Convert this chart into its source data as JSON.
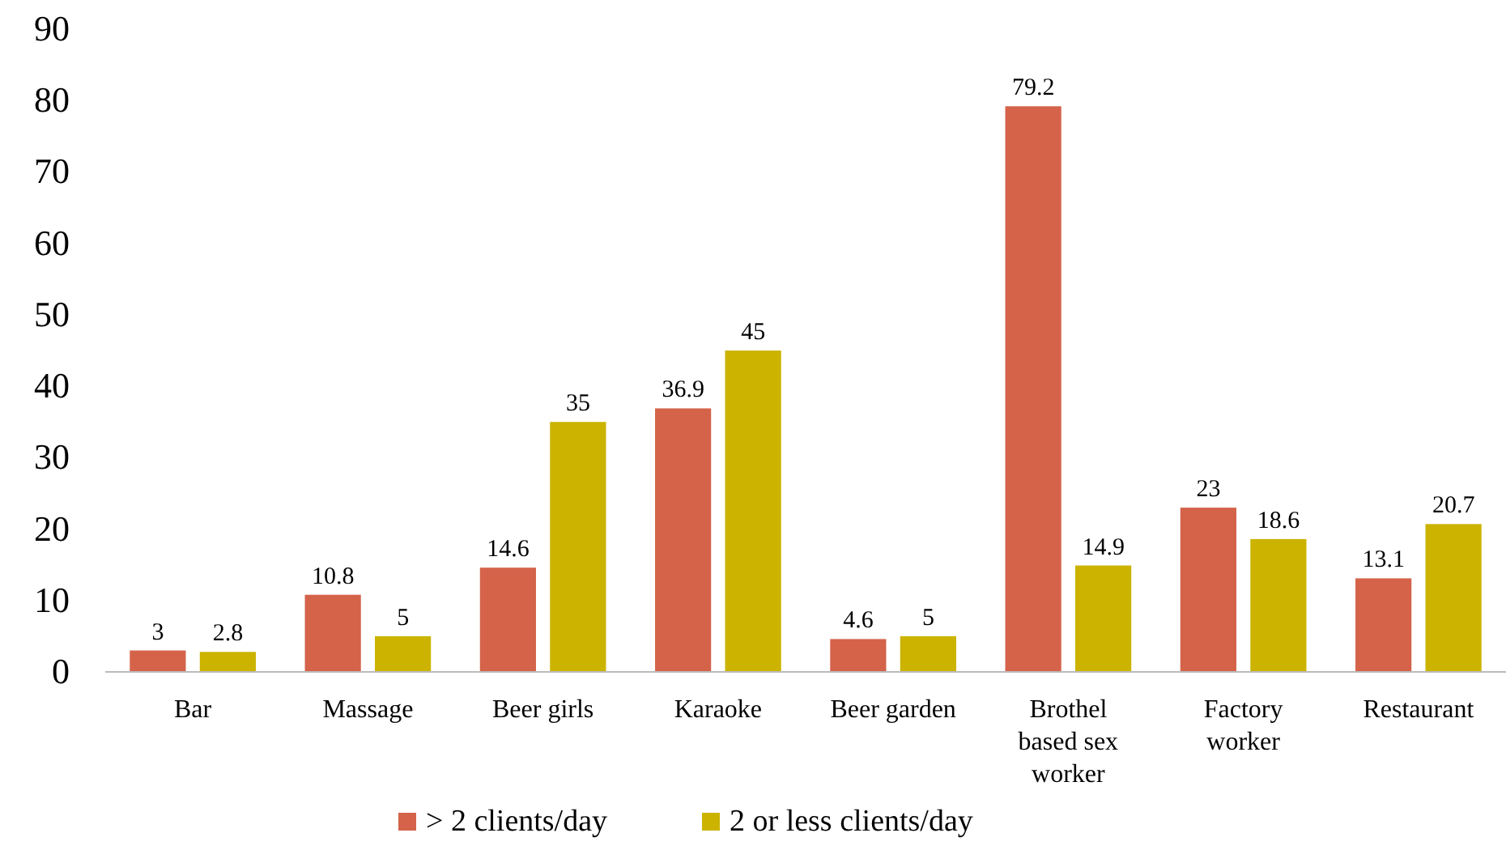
{
  "chart_data": {
    "type": "bar",
    "categories": [
      "Bar",
      "Massage",
      "Beer girls",
      "Karaoke",
      "Beer garden",
      "Brothel based sex worker",
      "Factory worker",
      "Restaurant"
    ],
    "series": [
      {
        "name": "> 2 clients/day",
        "color": "#d4634a",
        "values": [
          3,
          10.8,
          14.6,
          36.9,
          4.6,
          79.2,
          23,
          13.1
        ]
      },
      {
        "name": "2 or less clients/day",
        "color": "#cbb300",
        "values": [
          2.8,
          5,
          35,
          45,
          5,
          14.9,
          18.6,
          20.7
        ]
      }
    ],
    "ylim": [
      0,
      90
    ],
    "yticks": [
      0,
      10,
      20,
      30,
      40,
      50,
      60,
      70,
      80,
      90
    ],
    "grid": false,
    "legend": "bottom",
    "data_labels": true
  }
}
